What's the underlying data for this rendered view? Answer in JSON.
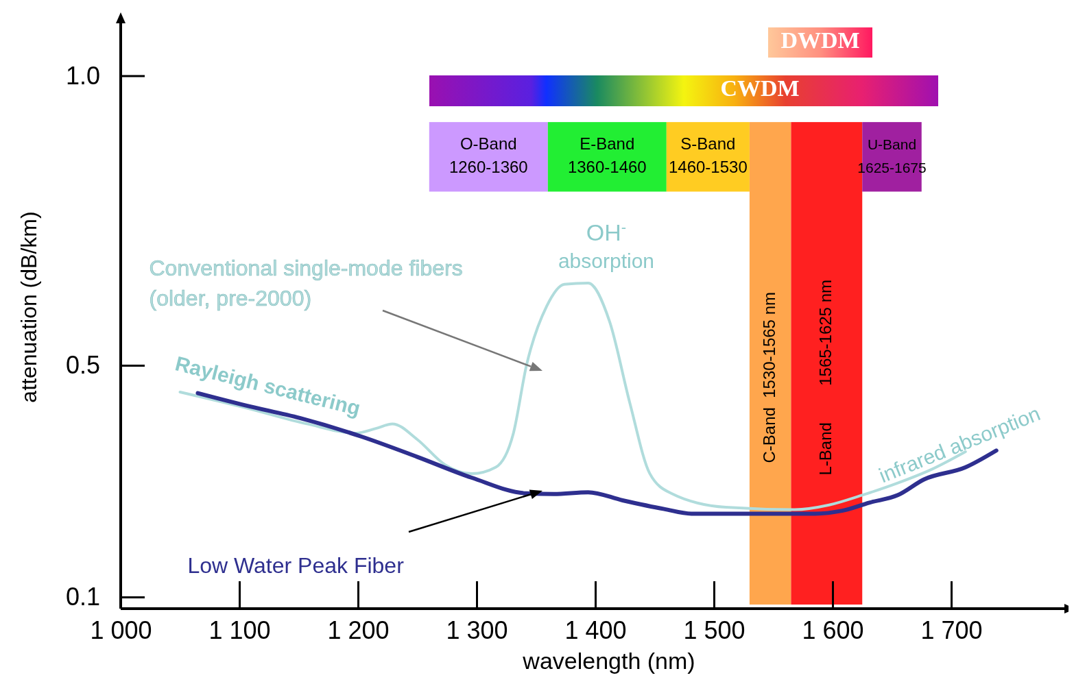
{
  "chart_data": {
    "type": "line",
    "xlabel": "wavelength (nm)",
    "ylabel": "attenuation (dB/km)",
    "xlim": [
      1000,
      1805
    ],
    "ylim": [
      0.08,
      1.1
    ],
    "xticks": [
      {
        "value": 1000,
        "label": "1 000"
      },
      {
        "value": 1100,
        "label": "1 100"
      },
      {
        "value": 1200,
        "label": "1 200"
      },
      {
        "value": 1300,
        "label": "1 300"
      },
      {
        "value": 1400,
        "label": "1 400"
      },
      {
        "value": 1500,
        "label": "1 500"
      },
      {
        "value": 1600,
        "label": "1 600"
      },
      {
        "value": 1700,
        "label": "1 700"
      }
    ],
    "yticks": [
      0.1,
      0.5,
      {
        "value": 1,
        "label": "1.0"
      }
    ],
    "grid": false,
    "legend": false,
    "marker": "none",
    "line_style": "solid",
    "series": [
      {
        "name": "Conventional single-mode fibers\n(older, pre-2000)",
        "color": "#b0dcdc",
        "x": [
          1050,
          1105,
          1157,
          1198,
          1215,
          1229,
          1250,
          1273,
          1296,
          1316,
          1331,
          1342,
          1359,
          1374,
          1394,
          1412,
          1429,
          1446,
          1464,
          1510,
          1568,
          1597,
          1625,
          1655,
          1684,
          1712
        ],
        "values": [
          0.454,
          0.427,
          0.399,
          0.383,
          0.391,
          0.399,
          0.372,
          0.329,
          0.313,
          0.324,
          0.383,
          0.5,
          0.602,
          0.64,
          0.642,
          0.576,
          0.436,
          0.313,
          0.279,
          0.255,
          0.251,
          0.259,
          0.276,
          0.297,
          0.321,
          0.351
        ]
      },
      {
        "name": "Low Water Peak Fiber",
        "color": "#2e2f8f",
        "x": [
          1065,
          1105,
          1151,
          1203,
          1250,
          1296,
          1342,
          1365,
          1394,
          1423,
          1458,
          1481,
          1539,
          1585,
          1608,
          1631,
          1655,
          1677,
          1712,
          1738
        ],
        "values": [
          0.452,
          0.431,
          0.409,
          0.377,
          0.342,
          0.306,
          0.279,
          0.278,
          0.281,
          0.267,
          0.252,
          0.244,
          0.244,
          0.244,
          0.249,
          0.263,
          0.276,
          0.303,
          0.324,
          0.353
        ]
      }
    ],
    "bands": [
      {
        "axis": "x",
        "from": 1260,
        "to": 1360,
        "label": "O-Band\n1260-1360",
        "color": "#cc99ff"
      },
      {
        "axis": "x",
        "from": 1360,
        "to": 1460,
        "label": "E-Band\n1360-1460",
        "color": "#22ee33"
      },
      {
        "axis": "x",
        "from": 1460,
        "to": 1530,
        "label": "S-Band\n1460-1530",
        "color": "#ffcc22"
      },
      {
        "axis": "x",
        "from": 1530,
        "to": 1565,
        "label": "C-Band  1530-1565 nm",
        "color": "#ffa64d"
      },
      {
        "axis": "x",
        "from": 1565,
        "to": 1625,
        "label": "L-Band        1565-1625 nm",
        "color": "#ff2020"
      },
      {
        "axis": "x",
        "from": 1625,
        "to": 1675,
        "label": "U-Band\n1625-1675",
        "color": "#a020a0"
      }
    ],
    "annotations": [
      "CWDM",
      "DWDM",
      "Rayleigh scattering",
      "OH$^{-}$",
      "absorption",
      "infrared absorption"
    ]
  }
}
